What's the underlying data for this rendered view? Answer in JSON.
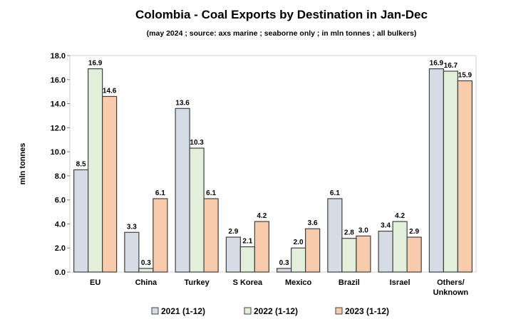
{
  "chart_data": {
    "type": "bar",
    "title": "Colombia - Coal Exports by Destination in Jan-Dec",
    "subtitle": "(may 2024 ; source: axs marine ; seaborne only ; in mln tonnes ; all bulkers)",
    "xlabel": "",
    "ylabel": "mln tonnes",
    "ylim": [
      0,
      18
    ],
    "yticks": [
      "0.0",
      "2.0",
      "4.0",
      "6.0",
      "8.0",
      "10.0",
      "12.0",
      "14.0",
      "16.0",
      "18.0"
    ],
    "categories": [
      "EU",
      "China",
      "Turkey",
      "S Korea",
      "Mexico",
      "Brazil",
      "Israel",
      "Others/\nUnknown"
    ],
    "series": [
      {
        "name": "2021 (1-12)",
        "color": "#d6dce5",
        "values": [
          8.5,
          3.3,
          13.6,
          2.9,
          0.3,
          6.1,
          3.4,
          16.9
        ]
      },
      {
        "name": "2022 (1-12)",
        "color": "#e2efda",
        "values": [
          16.9,
          0.3,
          10.3,
          2.1,
          2.0,
          2.8,
          4.2,
          16.7
        ]
      },
      {
        "name": "2023 (1-12)",
        "color": "#f8cbad",
        "values": [
          14.6,
          6.1,
          6.1,
          4.2,
          3.6,
          3.0,
          2.9,
          15.9
        ]
      }
    ],
    "legend": "bottom",
    "grid": false
  }
}
